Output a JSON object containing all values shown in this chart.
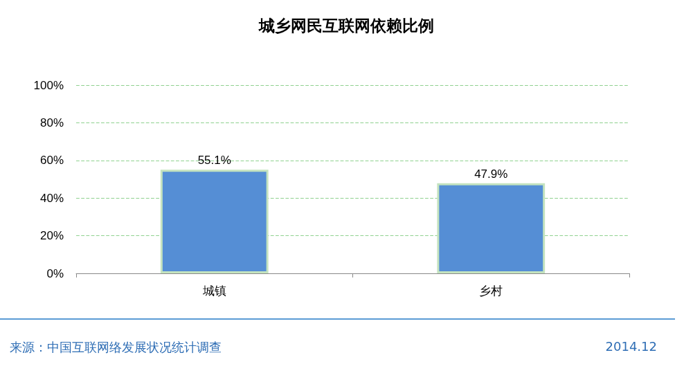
{
  "chart_data": {
    "type": "bar",
    "title": "城乡网民互联网依赖比例",
    "categories": [
      "城镇",
      "乡村"
    ],
    "values": [
      55.1,
      47.9
    ],
    "value_labels": [
      "55.1%",
      "47.9%"
    ],
    "color": "#558ed5",
    "ylim": [
      0,
      100
    ],
    "yticks": [
      {
        "value": 0,
        "label": "0%"
      },
      {
        "value": 20,
        "label": "20%"
      },
      {
        "value": 40,
        "label": "40%"
      },
      {
        "value": 60,
        "label": "60%"
      },
      {
        "value": 80,
        "label": "80%"
      },
      {
        "value": 100,
        "label": "100%"
      }
    ],
    "grid": "y",
    "annotations": [
      "来源：中国互联网络发展状况统计调查",
      "2014.12"
    ]
  }
}
